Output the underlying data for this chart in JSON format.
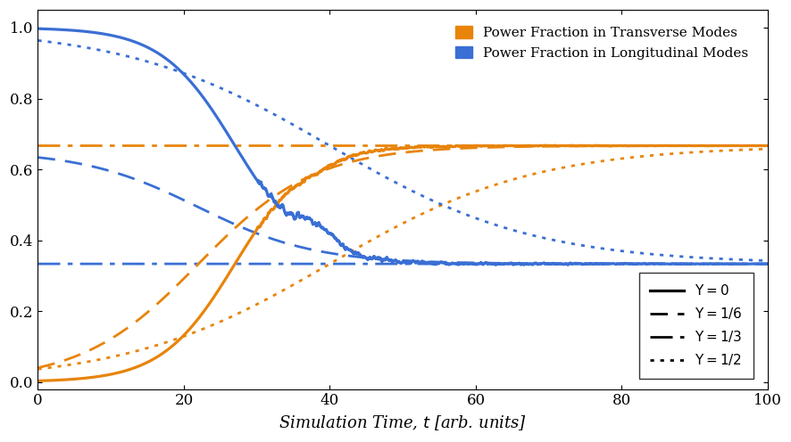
{
  "orange_color": "#E8840A",
  "blue_color": "#3A6FD4",
  "xlabel": "Simulation Time, $t$ [arb. units]",
  "xlim": [
    0,
    100
  ],
  "ylim": [
    -0.02,
    1.05
  ],
  "yticks": [
    0.0,
    0.2,
    0.4,
    0.6,
    0.8,
    1.0
  ],
  "xticks": [
    0,
    20,
    40,
    60,
    80,
    100
  ],
  "legend_transverse": "Power Fraction in Transverse Modes",
  "legend_longitudinal": "Power Fraction in Longitudinal Modes",
  "legend_upsilon_0": "$\\Upsilon = 0$",
  "legend_upsilon_1_6": "$\\Upsilon = 1/6$",
  "legend_upsilon_1_3": "$\\Upsilon = 1/3$",
  "legend_upsilon_1_2": "$\\Upsilon = 1/2$",
  "final_trans": 0.6667,
  "final_long": 0.3333
}
